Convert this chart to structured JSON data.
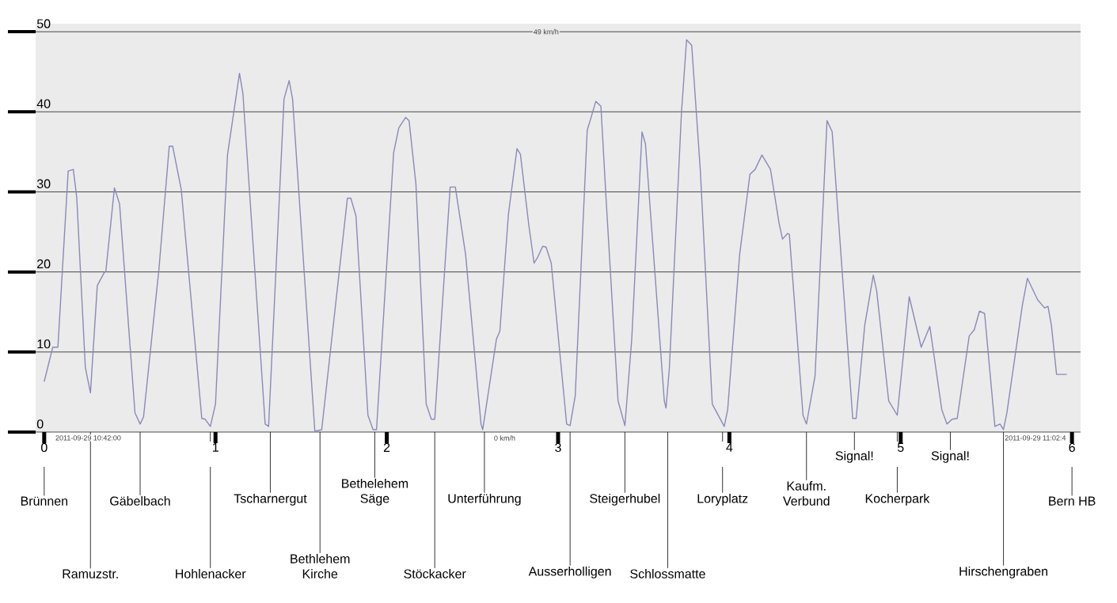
{
  "chart_data": {
    "type": "line",
    "x": [
      0.0,
      0.05,
      0.08,
      0.14,
      0.17,
      0.19,
      0.24,
      0.27,
      0.31,
      0.35,
      0.36,
      0.41,
      0.44,
      0.53,
      0.56,
      0.58,
      0.67,
      0.73,
      0.75,
      0.8,
      0.92,
      0.94,
      0.97,
      1.0,
      1.07,
      1.14,
      1.16,
      1.29,
      1.31,
      1.4,
      1.43,
      1.45,
      1.58,
      1.62,
      1.77,
      1.79,
      1.82,
      1.89,
      1.92,
      1.94,
      2.04,
      2.07,
      2.11,
      2.13,
      2.17,
      2.23,
      2.26,
      2.28,
      2.37,
      2.4,
      2.46,
      2.55,
      2.56,
      2.64,
      2.66,
      2.71,
      2.76,
      2.78,
      2.83,
      2.86,
      2.88,
      2.91,
      2.93,
      2.96,
      3.05,
      3.07,
      3.1,
      3.17,
      3.19,
      3.22,
      3.25,
      3.28,
      3.35,
      3.39,
      3.43,
      3.49,
      3.51,
      3.62,
      3.63,
      3.65,
      3.72,
      3.75,
      3.78,
      3.83,
      3.9,
      3.97,
      3.99,
      4.06,
      4.12,
      4.15,
      4.19,
      4.24,
      4.29,
      4.31,
      4.34,
      4.35,
      4.43,
      4.45,
      4.5,
      4.57,
      4.6,
      4.72,
      4.74,
      4.79,
      4.84,
      4.86,
      4.93,
      4.98,
      5.05,
      5.12,
      5.17,
      5.24,
      5.27,
      5.3,
      5.33,
      5.4,
      5.43,
      5.46,
      5.49,
      5.55,
      5.58,
      5.6,
      5.62,
      5.71,
      5.74,
      5.8,
      5.84,
      5.86,
      5.88,
      5.91,
      5.97
    ],
    "series": [
      {
        "color": "#8a8ab8",
        "values": [
          6.3,
          10.6,
          10.6,
          32.6,
          32.8,
          29.3,
          8.1,
          4.9,
          18.3,
          19.9,
          20.1,
          30.5,
          28.5,
          2.4,
          1.0,
          1.9,
          20.4,
          35.7,
          35.7,
          30.3,
          1.7,
          1.6,
          0.7,
          3.5,
          34.6,
          44.8,
          42.3,
          1.0,
          0.7,
          41.6,
          43.9,
          41.6,
          0.1,
          0.3,
          29.2,
          29.2,
          27.0,
          2.1,
          0.3,
          0.3,
          34.9,
          38.0,
          39.3,
          38.9,
          31.0,
          3.5,
          1.6,
          1.6,
          30.6,
          30.6,
          22.2,
          1.0,
          0.3,
          11.6,
          12.6,
          27.2,
          35.4,
          34.7,
          25.7,
          21.1,
          21.8,
          23.2,
          23.1,
          21.1,
          1.0,
          0.8,
          4.5,
          37.7,
          39.1,
          41.3,
          40.7,
          29.2,
          3.9,
          0.8,
          11.6,
          37.5,
          36.0,
          3.9,
          3.0,
          8.1,
          39.8,
          49.0,
          48.3,
          32.8,
          3.5,
          0.7,
          2.8,
          22.2,
          32.2,
          32.8,
          34.6,
          32.8,
          26.1,
          24.1,
          24.8,
          24.7,
          2.1,
          1.0,
          7.0,
          38.9,
          37.5,
          1.7,
          1.7,
          13.3,
          19.6,
          17.6,
          3.9,
          2.1,
          16.9,
          10.6,
          13.2,
          2.8,
          1.0,
          1.6,
          1.7,
          12.0,
          12.8,
          15.1,
          14.8,
          0.7,
          1.0,
          0.3,
          2.4,
          15.8,
          19.2,
          16.5,
          15.5,
          15.7,
          13.3,
          7.2,
          7.2
        ]
      }
    ],
    "xlim": [
      -0.05,
      6.05
    ],
    "ylim": [
      0,
      51
    ],
    "xticks": [
      0,
      1,
      2,
      3,
      4,
      5,
      6
    ],
    "yticks": [
      0,
      10,
      20,
      30,
      40,
      50
    ],
    "grid": "y",
    "marker": "none",
    "line_style": "solid",
    "legend": false,
    "annotations": [
      "Brünnen",
      "Ramuzstr.",
      "Gäbelbach",
      "Hohlenacker",
      "Tscharnergut",
      "Bethlehem Kirche",
      "Bethelehem Säge",
      "Stöckacker",
      "Unterführung",
      "Ausserholligen",
      "Steigerhubel",
      "Schlossmatte",
      "Loryplatz",
      "Kaufm. Verbund",
      "Signal!",
      "Kocherpark",
      "Signal!",
      "Hirschengraben",
      "Bern HB",
      "2011-09-29 10:42:00",
      "49 km/h",
      "0 km/h",
      "2011-09-29 11:02:4"
    ]
  }
}
